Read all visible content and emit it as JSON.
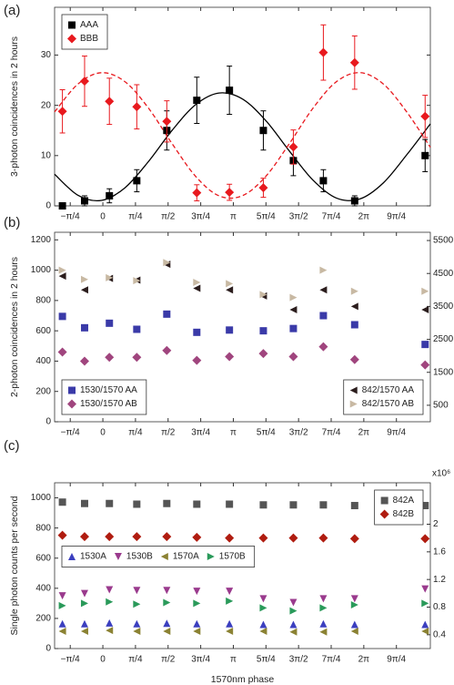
{
  "chart_data": [
    {
      "type": "scatter",
      "title": "(a)",
      "ylabel": "3-photon coincidences in 2 hours",
      "x": [
        -0.31,
        -0.14,
        0.05,
        0.26,
        0.49,
        0.72,
        0.97,
        1.23,
        1.46,
        1.69,
        1.93,
        2.47
      ],
      "xlim": [
        -0.37,
        2.51
      ],
      "xticks": [
        {
          "value": -0.25,
          "label": "−π/4"
        },
        0,
        {
          "value": 0.25,
          "label": "π/4"
        },
        {
          "value": 0.5,
          "label": "π/2"
        },
        {
          "value": 0.75,
          "label": "3π/4"
        },
        {
          "value": 1,
          "label": "π"
        },
        {
          "value": 1.25,
          "label": "5π/4"
        },
        {
          "value": 1.5,
          "label": "3π/2"
        },
        {
          "value": 1.75,
          "label": "7π/4"
        },
        {
          "value": 2,
          "label": "2π"
        },
        {
          "value": 2.25,
          "label": "9π/4"
        }
      ],
      "ylim": [
        0,
        39.5
      ],
      "yticks": [
        0,
        10,
        20,
        30
      ],
      "legend_loc": "upper left",
      "series": [
        {
          "name": "AAA",
          "color": "#000000",
          "marker": "square",
          "values": [
            0,
            1,
            2,
            5,
            15,
            21,
            23,
            15,
            9,
            5,
            1,
            10
          ],
          "errors": [
            0,
            1,
            1.4,
            2.2,
            3.9,
            4.6,
            4.8,
            3.9,
            3,
            2.2,
            1,
            3.2
          ]
        },
        {
          "name": "BBB",
          "color": "#e8191e",
          "marker": "diamond",
          "values": [
            18.8,
            24.8,
            20.8,
            19.7,
            16.8,
            2.6,
            2.7,
            3.6,
            11.7,
            30.5,
            28.5,
            17.8
          ],
          "errors": [
            4.3,
            5,
            4.6,
            4.4,
            4.1,
            1.6,
            1.6,
            1.9,
            3.4,
            5.5,
            5.3,
            4.2
          ]
        }
      ],
      "fits": [
        {
          "color": "#000000",
          "dash": "solid",
          "x": [
            -0.37,
            -0.19,
            -0.01,
            0.17,
            0.35,
            0.53,
            0.71,
            0.89,
            1.07,
            1.25,
            1.43,
            1.61,
            1.79,
            1.97,
            2.15,
            2.33,
            2.51
          ],
          "values": [
            6.29,
            2.09,
            1.09,
            3.61,
            8.83,
            15.0,
            20.11,
            22.45,
            21.25,
            16.92,
            10.88,
            5.13,
            1.55,
            1.38,
            4.58,
            10.19,
            16.3
          ]
        },
        {
          "color": "#e8191e",
          "dash": "dashed",
          "x": [
            -0.37,
            -0.19,
            -0.01,
            0.17,
            0.35,
            0.53,
            0.71,
            0.89,
            1.07,
            1.25,
            1.43,
            1.61,
            1.79,
            1.97,
            2.15,
            2.33,
            2.51
          ],
          "values": [
            18.69,
            24.25,
            26.49,
            24.69,
            19.43,
            12.4,
            5.9,
            2.0,
            2.03,
            5.91,
            12.4,
            19.41,
            24.7,
            26.5,
            24.23,
            18.65,
            11.65
          ]
        }
      ]
    },
    {
      "type": "scatter",
      "title": "(b)",
      "ylabel": "2-photon coincidences in 2 hours",
      "x": [
        -0.31,
        -0.14,
        0.05,
        0.26,
        0.49,
        0.72,
        0.97,
        1.23,
        1.46,
        1.69,
        1.93,
        2.47
      ],
      "xlim": [
        -0.37,
        2.51
      ],
      "xticks": [
        {
          "value": -0.25,
          "label": "−π/4"
        },
        0,
        {
          "value": 0.25,
          "label": "π/4"
        },
        {
          "value": 0.5,
          "label": "π/2"
        },
        {
          "value": 0.75,
          "label": "3π/4"
        },
        {
          "value": 1,
          "label": "π"
        },
        {
          "value": 1.25,
          "label": "5π/4"
        },
        {
          "value": 1.5,
          "label": "3π/2"
        },
        {
          "value": 1.75,
          "label": "7π/4"
        },
        {
          "value": 2,
          "label": "2π"
        },
        {
          "value": 2.25,
          "label": "9π/4"
        }
      ],
      "ylim": [
        0,
        1250
      ],
      "yticks": [
        0,
        200,
        400,
        600,
        800,
        1000,
        1200
      ],
      "y2lim": [
        0,
        5750
      ],
      "y2ticks": [
        500,
        1500,
        2500,
        3500,
        4500,
        5500
      ],
      "legend_loc": "lower left",
      "legend2_loc": "lower right",
      "series": [
        {
          "name": "1530/1570 AA",
          "color": "#3a3aa8",
          "marker": "square",
          "values": [
            695,
            620,
            650,
            610,
            710,
            590,
            605,
            600,
            615,
            700,
            640,
            510
          ]
        },
        {
          "name": "1530/1570 AB",
          "color": "#a0457e",
          "marker": "diamond",
          "values": [
            460,
            400,
            425,
            425,
            470,
            405,
            430,
            450,
            430,
            495,
            410,
            375
          ]
        },
        {
          "name": "842/1570 AA",
          "color": "#2b1d1d",
          "marker": "triangle-left",
          "axis": "y2",
          "values": [
            4420,
            4000,
            4350,
            4300,
            4780,
            4050,
            4000,
            3820,
            3400,
            4000,
            3500,
            3400
          ]
        },
        {
          "name": "842/1570 AB",
          "color": "#c8b9a3",
          "marker": "triangle-right",
          "axis": "y2",
          "values": [
            4600,
            4320,
            4370,
            4280,
            4830,
            4230,
            4190,
            3860,
            3770,
            4600,
            3960,
            3960
          ]
        }
      ]
    },
    {
      "type": "scatter",
      "title": "(c)",
      "ylabel": "Single photon counts per second",
      "xlabel": "1570nm phase",
      "y2label": "x10⁶",
      "x": [
        -0.31,
        -0.14,
        0.05,
        0.26,
        0.49,
        0.72,
        0.97,
        1.23,
        1.46,
        1.69,
        1.93,
        2.47
      ],
      "xlim": [
        -0.37,
        2.51
      ],
      "xticks": [
        {
          "value": -0.25,
          "label": "−π/4"
        },
        0,
        {
          "value": 0.25,
          "label": "π/4"
        },
        {
          "value": 0.5,
          "label": "π/2"
        },
        {
          "value": 0.75,
          "label": "3π/4"
        },
        {
          "value": 1,
          "label": "π"
        },
        {
          "value": 1.25,
          "label": "5π/4"
        },
        {
          "value": 1.5,
          "label": "3π/2"
        },
        {
          "value": 1.75,
          "label": "7π/4"
        },
        {
          "value": 2,
          "label": "2π"
        },
        {
          "value": 2.25,
          "label": "9π/4"
        }
      ],
      "ylim": [
        0,
        1100
      ],
      "yticks": [
        0,
        200,
        400,
        600,
        800,
        1000
      ],
      "y2lim": [
        0.2,
        2.6
      ],
      "y2ticks": [
        0.4,
        0.8,
        1.2,
        1.6,
        2
      ],
      "legend_loc": "center left",
      "legend_ncol": 4,
      "legend2_loc": "upper right",
      "series": [
        {
          "name": "842A",
          "color": "#555555",
          "marker": "square",
          "axis": "y2",
          "values": [
            2.32,
            2.3,
            2.3,
            2.29,
            2.3,
            2.29,
            2.29,
            2.28,
            2.28,
            2.28,
            2.27,
            2.27
          ]
        },
        {
          "name": "842B",
          "color": "#b01c10",
          "marker": "diamond",
          "axis": "y2",
          "values": [
            1.84,
            1.82,
            1.82,
            1.82,
            1.82,
            1.81,
            1.8,
            1.8,
            1.8,
            1.8,
            1.79,
            1.79
          ]
        },
        {
          "name": "1530A",
          "color": "#3b3fbf",
          "marker": "triangle-up",
          "values": [
            165,
            165,
            170,
            165,
            168,
            165,
            165,
            160,
            160,
            165,
            160,
            160
          ]
        },
        {
          "name": "1530B",
          "color": "#9a3a8d",
          "marker": "triangle-down",
          "values": [
            350,
            365,
            390,
            385,
            385,
            380,
            380,
            330,
            305,
            330,
            330,
            395
          ]
        },
        {
          "name": "1570A",
          "color": "#8b8233",
          "marker": "triangle-left",
          "values": [
            115,
            115,
            120,
            115,
            115,
            115,
            115,
            115,
            110,
            110,
            115,
            115
          ]
        },
        {
          "name": "1570B",
          "color": "#2a9a5a",
          "marker": "triangle-right",
          "values": [
            285,
            300,
            310,
            295,
            305,
            300,
            315,
            270,
            250,
            270,
            290,
            300
          ]
        }
      ]
    }
  ]
}
